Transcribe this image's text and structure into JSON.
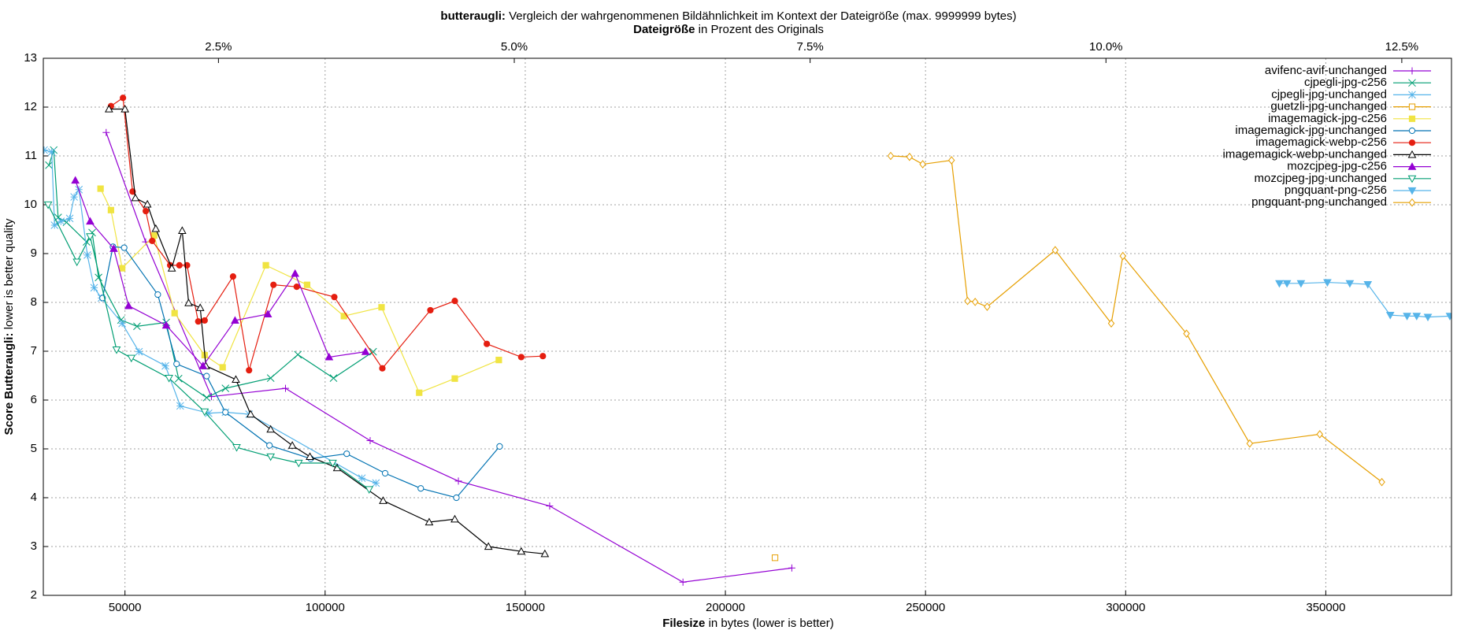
{
  "chart_data": {
    "type": "line",
    "title_bold": "butteraugli:",
    "title": "Vergleich der wahrgenommenen Bildähnlichkeit im Kontext der Dateigröße (max. 9999999 bytes)",
    "x2label_bold": "Dateigröße",
    "x2label": "in Prozent des Originals",
    "xlabel_bold": "Filesize",
    "xlabel": "in bytes (lower is better)",
    "ylabel_bold": "Score Butteraugli:",
    "ylabel": "lower is better quality",
    "xlim": [
      29600,
      381400
    ],
    "xticks": [
      50000,
      100000,
      150000,
      200000,
      250000,
      300000,
      350000
    ],
    "x2lim": [
      1.02,
      12.92
    ],
    "x2ticks": [
      {
        "value": 2.5,
        "label": "2.5%"
      },
      {
        "value": 5.0,
        "label": "5.0%"
      },
      {
        "value": 7.5,
        "label": "7.5%"
      },
      {
        "value": 10.0,
        "label": "10.0%"
      },
      {
        "value": 12.5,
        "label": "12.5%"
      }
    ],
    "ylim": [
      2,
      13
    ],
    "yticks": [
      2,
      3,
      4,
      5,
      6,
      7,
      8,
      9,
      10,
      11,
      12,
      13
    ],
    "grid": true,
    "legend": "top-right",
    "series": [
      {
        "name": "avifenc-avif-unchanged",
        "color": "#9400d3",
        "marker": "plus",
        "x": [
          45300,
          55160,
          71600,
          90100,
          111250,
          133300,
          156100,
          189400,
          216600
        ],
        "values": [
          11.48,
          9.24,
          6.07,
          6.24,
          5.17,
          4.34,
          3.83,
          2.27,
          2.56
        ]
      },
      {
        "name": "cjpegli-jpg-c256",
        "color": "#009e73",
        "marker": "cross",
        "x": [
          31000,
          32200,
          33300,
          35400,
          40400,
          41800,
          43400,
          49000,
          53000,
          60300,
          63400,
          70400,
          75100,
          86400,
          93200,
          102100,
          112000
        ],
        "values": [
          10.81,
          11.12,
          9.74,
          9.64,
          9.24,
          9.43,
          8.51,
          7.64,
          7.51,
          7.59,
          6.44,
          6.05,
          6.24,
          6.45,
          6.93,
          6.45,
          6.99
        ]
      },
      {
        "name": "cjpegli-jpg-unchanged",
        "color": "#56b4e9",
        "marker": "star",
        "x": [
          29800,
          31700,
          32400,
          34000,
          36200,
          37300,
          38500,
          40600,
          42300,
          44100,
          49300,
          53500,
          60100,
          63800,
          70900,
          75100,
          81000,
          109200,
          112700
        ],
        "values": [
          11.12,
          11.08,
          9.58,
          9.66,
          9.72,
          10.16,
          10.31,
          8.97,
          8.3,
          8.09,
          7.57,
          6.99,
          6.7,
          5.88,
          5.73,
          5.75,
          5.71,
          4.4,
          4.3
        ]
      },
      {
        "name": "guetzli-jpg-unchanged",
        "color": "#e69f00",
        "marker": "square",
        "x": [
          212400
        ],
        "values": [
          2.77
        ]
      },
      {
        "name": "imagemagick-jpg-c256",
        "color": "#f0e442",
        "marker": "square-filled",
        "x": [
          43900,
          46500,
          49300,
          57300,
          62400,
          69900,
          74400,
          85200,
          95500,
          104700,
          114100,
          123500,
          132400,
          143400
        ],
        "values": [
          10.33,
          9.89,
          8.7,
          9.37,
          7.78,
          6.92,
          6.67,
          8.76,
          8.36,
          7.72,
          7.9,
          6.15,
          6.44,
          6.82
        ]
      },
      {
        "name": "imagemagick-jpg-unchanged",
        "color": "#0072b2",
        "marker": "circle",
        "x": [
          44400,
          47000,
          49800,
          58200,
          62900,
          70400,
          75100,
          86100,
          96400,
          105400,
          115000,
          123900,
          132800,
          143600
        ],
        "values": [
          8.09,
          9.14,
          9.12,
          8.16,
          6.74,
          6.49,
          5.75,
          5.07,
          4.8,
          4.9,
          4.5,
          4.19,
          4.0,
          5.05
        ]
      },
      {
        "name": "imagemagick-webp-c256",
        "color": "#e51e10",
        "marker": "circle-filled",
        "x": [
          46500,
          49500,
          51900,
          55200,
          56800,
          61300,
          63600,
          65500,
          68300,
          69900,
          77000,
          81000,
          87100,
          92900,
          102300,
          114300,
          126300,
          132400,
          140400,
          149000,
          154400
        ],
        "values": [
          12.02,
          12.19,
          10.27,
          9.87,
          9.26,
          8.76,
          8.76,
          8.76,
          7.61,
          7.63,
          8.53,
          6.61,
          8.36,
          8.32,
          8.11,
          6.65,
          7.84,
          8.03,
          7.15,
          6.88,
          6.9
        ]
      },
      {
        "name": "imagemagick-webp-unchanged",
        "color": "#000000",
        "marker": "triangle",
        "x": [
          46000,
          50000,
          52600,
          55600,
          57700,
          61700,
          64300,
          65900,
          68800,
          70200,
          77700,
          81400,
          86400,
          91800,
          96200,
          103000,
          114500,
          126000,
          132400,
          140800,
          149000,
          154900
        ],
        "values": [
          11.96,
          11.96,
          10.14,
          10.01,
          9.51,
          8.7,
          9.47,
          7.99,
          7.89,
          6.7,
          6.42,
          5.71,
          5.4,
          5.07,
          4.84,
          4.61,
          3.94,
          3.5,
          3.56,
          3.0,
          2.9,
          2.85
        ]
      },
      {
        "name": "mozcjpeg-jpg-c256",
        "color": "#9400d3",
        "marker": "triangle-filled",
        "x": [
          37600,
          41300,
          47200,
          50900,
          60300,
          69500,
          77500,
          85700,
          92500,
          101000,
          110100
        ],
        "values": [
          10.5,
          9.66,
          9.1,
          7.93,
          7.53,
          6.7,
          7.63,
          7.76,
          8.59,
          6.88,
          6.99
        ]
      },
      {
        "name": "mozcjpeg-jpg-unchanged",
        "color": "#009e73",
        "marker": "down",
        "x": [
          30800,
          38000,
          41300,
          47900,
          51600,
          61000,
          69900,
          77900,
          86400,
          93400,
          101900,
          111000
        ],
        "values": [
          10.0,
          8.83,
          9.35,
          7.03,
          6.86,
          6.45,
          5.76,
          5.03,
          4.84,
          4.71,
          4.71,
          4.17
        ]
      },
      {
        "name": "pngquant-png-c256",
        "color": "#56b4e9",
        "marker": "down-filled",
        "x": [
          338400,
          340300,
          343800,
          350400,
          356000,
          360500,
          366100,
          370300,
          372700,
          375500,
          381000
        ],
        "values": [
          8.39,
          8.39,
          8.39,
          8.41,
          8.39,
          8.37,
          7.74,
          7.72,
          7.72,
          7.7,
          7.72
        ]
      },
      {
        "name": "pngquant-png-unchanged",
        "color": "#e69f00",
        "marker": "diamond",
        "x": [
          241300,
          246000,
          249300,
          256500,
          260500,
          262400,
          265400,
          282400,
          296400,
          299300,
          315200,
          331000,
          348500,
          364000
        ],
        "values": [
          11.0,
          10.98,
          10.83,
          10.91,
          8.03,
          8.01,
          7.91,
          9.07,
          7.57,
          8.95,
          7.36,
          5.11,
          5.3,
          4.32
        ]
      }
    ]
  }
}
